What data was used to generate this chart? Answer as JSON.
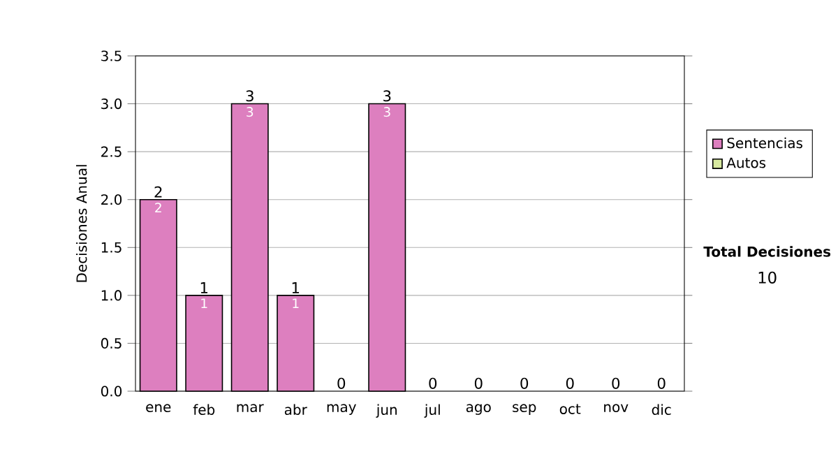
{
  "chart_data": {
    "type": "bar",
    "stacked": true,
    "ylabel": "Decisiones Anual",
    "categories": [
      "ene",
      "feb",
      "mar",
      "abr",
      "may",
      "jun",
      "jul",
      "ago",
      "sep",
      "oct",
      "nov",
      "dic"
    ],
    "series": [
      {
        "name": "Sentencias",
        "color": "#dd7fbf",
        "values": [
          2,
          1,
          3,
          1,
          0,
          3,
          0,
          0,
          0,
          0,
          0,
          0
        ],
        "value_labels": [
          "2",
          "1",
          "3",
          "1",
          null,
          "3",
          null,
          null,
          null,
          null,
          null,
          null
        ]
      },
      {
        "name": "Autos",
        "color": "#d8eaa0",
        "values": [
          0,
          0,
          0,
          0,
          0,
          0,
          0,
          0,
          0,
          0,
          0,
          0
        ]
      }
    ],
    "totals": [
      "2",
      "1",
      "3",
      "1",
      "0",
      "3",
      "0",
      "0",
      "0",
      "0",
      "0",
      "0"
    ],
    "ylim": [
      0,
      3.5
    ],
    "yticks": [
      {
        "value": 0,
        "label": "0.0"
      },
      {
        "value": 0.5,
        "label": "0.5"
      },
      {
        "value": 1,
        "label": "1.0"
      },
      {
        "value": 1.5,
        "label": "1.5"
      },
      {
        "value": 2,
        "label": "2.0"
      },
      {
        "value": 2.5,
        "label": "2.5"
      },
      {
        "value": 3,
        "label": "3.0"
      },
      {
        "value": 3.5,
        "label": "3.5"
      }
    ],
    "grid": "y",
    "legend": "right",
    "annotations": [
      "Total Decisiones",
      "10"
    ]
  }
}
